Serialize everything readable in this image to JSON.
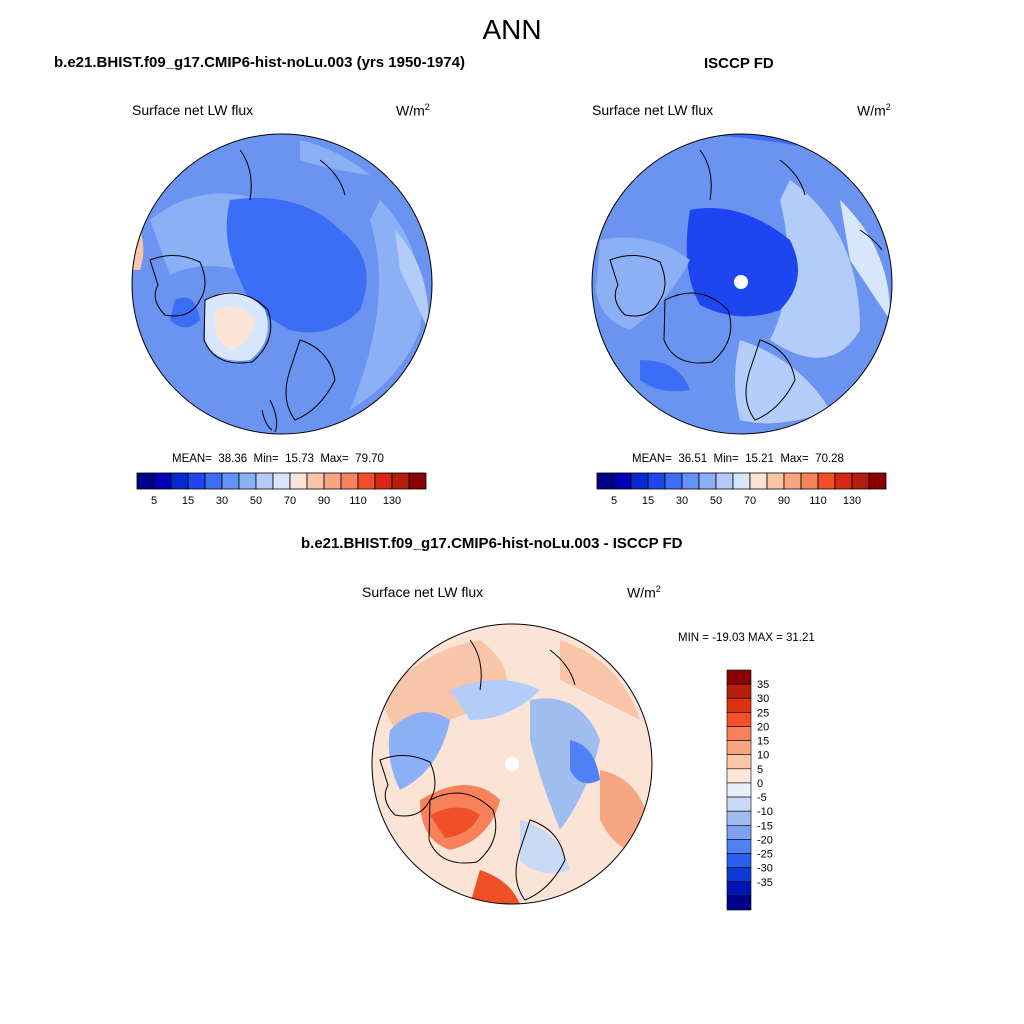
{
  "title": "ANN",
  "panels": [
    {
      "id": "model",
      "title": "b.e21.BHIST.f09_g17.CMIP6-hist-noLu.003 (yrs 1950-1974)",
      "variable": "Surface net LW flux",
      "units_base": "W/m",
      "units_exp": "2",
      "stats": {
        "mean_label": "MEAN=",
        "mean": "38.36",
        "min_label": "Min=",
        "min": "15.73",
        "max_label": "Max=",
        "max": "79.70"
      }
    },
    {
      "id": "obs",
      "title": "ISCCP FD",
      "variable": "Surface net LW flux",
      "units_base": "W/m",
      "units_exp": "2",
      "stats": {
        "mean_label": "MEAN=",
        "mean": "36.51",
        "min_label": "Min=",
        "min": "15.21",
        "max_label": "Max=",
        "max": "70.28"
      }
    },
    {
      "id": "diff",
      "title": "b.e21.BHIST.f09_g17.CMIP6-hist-noLu.003 - ISCCP FD",
      "variable": "Surface net LW flux",
      "units_base": "W/m",
      "units_exp": "2",
      "minmax_text": "MIN = -19.03 MAX =  31.21"
    }
  ],
  "colorbar_abs": {
    "colors": [
      "#00008b",
      "#0000b4",
      "#0a28d2",
      "#1e46f0",
      "#3c6ef5",
      "#6491fa",
      "#8cb0f5",
      "#b4ccfa",
      "#d7e6fa",
      "#fbe4d6",
      "#f9c5a8",
      "#f7a583",
      "#f5825a",
      "#f05028",
      "#d72814",
      "#b41e0a",
      "#8b0000"
    ],
    "tick_labels": [
      "5",
      "15",
      "30",
      "50",
      "70",
      "90",
      "110",
      "130"
    ]
  },
  "colorbar_diff": {
    "colors": [
      "#8b0000",
      "#b41e0a",
      "#dc3214",
      "#f55028",
      "#f7825a",
      "#f9a583",
      "#fbc8a8",
      "#fde6d6",
      "#e8eefa",
      "#c8d9f5",
      "#a0bdf0",
      "#7ca1f0",
      "#5082f5",
      "#285ff0",
      "#0a3cd2",
      "#0014b4",
      "#00008b"
    ],
    "tick_labels": [
      "35",
      "30",
      "25",
      "20",
      "15",
      "10",
      "5",
      "0",
      "-5",
      "-10",
      "-15",
      "-20",
      "-25",
      "-30",
      "-35"
    ]
  },
  "colors": {
    "ocean_blue": "#6b93f0",
    "deep_blue": "#2f5fe8",
    "light_blue": "#b0c8f5",
    "warm": "#f5a98a"
  }
}
